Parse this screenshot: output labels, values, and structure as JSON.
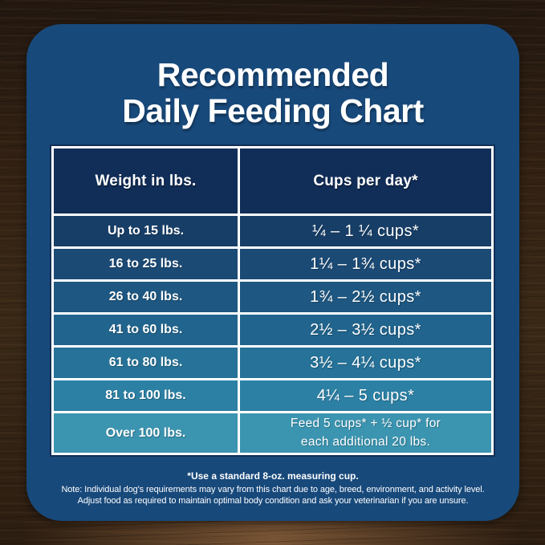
{
  "title": {
    "line1": "Recommended",
    "line2": "Daily Feeding Chart"
  },
  "table": {
    "header": {
      "weight": "Weight in lbs.",
      "cups": "Cups per day*"
    },
    "rows": [
      {
        "weight": "Up to 15 lbs.",
        "cups": "¼ – 1 ¼ cups*"
      },
      {
        "weight": "16 to 25 lbs.",
        "cups": "1¼ – 1¾ cups*"
      },
      {
        "weight": "26 to 40 lbs.",
        "cups": "1¾ – 2½ cups*"
      },
      {
        "weight": "41 to 60 lbs.",
        "cups": "2½ – 3½ cups*"
      },
      {
        "weight": "61 to 80 lbs.",
        "cups": "3½ – 4¼ cups*"
      },
      {
        "weight": "81 to 100 lbs.",
        "cups": "4¼ – 5 cups*"
      },
      {
        "weight": "Over 100 lbs.",
        "cups_line1": "Feed 5 cups* + ½ cup* for",
        "cups_line2": "each additional 20 lbs."
      }
    ]
  },
  "footnotes": {
    "line1": "*Use a standard 8-oz. measuring cup.",
    "line2": "Note: Individual dog's requirements may vary from this chart due to age, breed, environment, and activity level.",
    "line3": "Adjust food as required to maintain optimal body condition and ask your veterinarian if you are unsure."
  },
  "colors": {
    "panel_bg": "#18497B",
    "header_bg": "#112E58",
    "row_colors": [
      "#173E67",
      "#1B4A75",
      "#1E5781",
      "#21648D",
      "#267298",
      "#2C80A4",
      "#3B94B0"
    ],
    "table_border": "#FFFFFF",
    "text": "#FFFFFF",
    "wood_dark": "#2A1C10",
    "wood_light": "#6B4A2F"
  },
  "chart_data": {
    "type": "table",
    "title": "Recommended Daily Feeding Chart",
    "columns": [
      "Weight in lbs.",
      "Cups per day*"
    ],
    "rows": [
      [
        "Up to 15 lbs.",
        "¼ – 1 ¼ cups*"
      ],
      [
        "16 to 25 lbs.",
        "1¼ – 1¾ cups*"
      ],
      [
        "26 to 40 lbs.",
        "1¾ – 2½ cups*"
      ],
      [
        "41 to 60 lbs.",
        "2½ – 3½ cups*"
      ],
      [
        "61 to 80 lbs.",
        "3½ – 4¼ cups*"
      ],
      [
        "81 to 100 lbs.",
        "4¼ – 5 cups*"
      ],
      [
        "Over 100 lbs.",
        "Feed 5 cups* + ½ cup* for each additional 20 lbs."
      ]
    ],
    "footnotes": [
      "*Use a standard 8-oz. measuring cup.",
      "Note: Individual dog's requirements may vary from this chart due to age, breed, environment, and activity level.",
      "Adjust food as required to maintain optimal body condition and ask your veterinarian if you are unsure."
    ]
  }
}
